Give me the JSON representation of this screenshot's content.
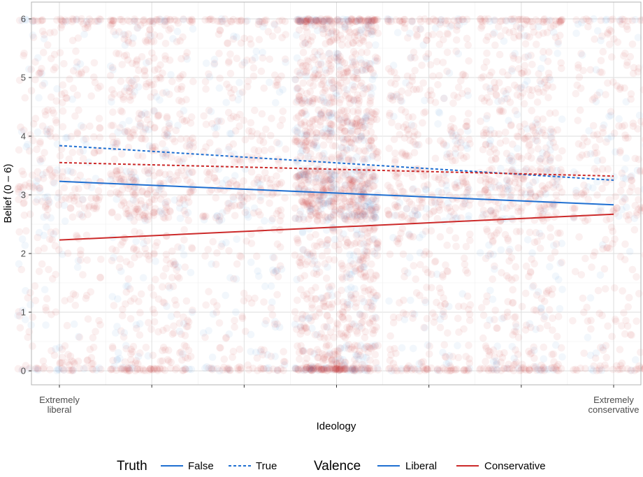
{
  "chart_data": {
    "type": "scatter",
    "title": "",
    "xlabel": "Ideology",
    "ylabel": "Belief (0 – 6)",
    "xlim": [
      1,
      7
    ],
    "ylim": [
      0,
      6
    ],
    "x_tick_labels": [
      {
        "x": 1,
        "lines": [
          "Extremely",
          "liberal"
        ]
      },
      {
        "x": 7,
        "lines": [
          "Extremely",
          "conservative"
        ]
      }
    ],
    "y_ticks": [
      0,
      1,
      2,
      3,
      4,
      5,
      6
    ],
    "grid": true,
    "legend_position": "bottom",
    "colors": {
      "liberal": "#1f6fd1",
      "conservative": "#cc2a2a"
    },
    "legend": {
      "truth_title": "Truth",
      "truth_items": [
        {
          "label": "False",
          "dash": "solid"
        },
        {
          "label": "True",
          "dash": "dashed"
        }
      ],
      "valence_title": "Valence",
      "valence_items": [
        {
          "label": "Liberal",
          "color": "#1f6fd1"
        },
        {
          "label": "Conservative",
          "color": "#cc2a2a"
        }
      ]
    },
    "fit_lines": [
      {
        "truth": "False",
        "valence": "Liberal",
        "x": [
          1,
          7
        ],
        "y": [
          3.23,
          2.83
        ]
      },
      {
        "truth": "True",
        "valence": "Liberal",
        "x": [
          1,
          7
        ],
        "y": [
          3.84,
          3.25
        ]
      },
      {
        "truth": "False",
        "valence": "Conservative",
        "x": [
          1,
          7
        ],
        "y": [
          2.23,
          2.67
        ]
      },
      {
        "truth": "True",
        "valence": "Conservative",
        "x": [
          1,
          7
        ],
        "y": [
          3.55,
          3.32
        ]
      }
    ],
    "scatter": {
      "description_free": true,
      "x_groups": [
        1,
        2,
        3,
        4,
        5,
        6,
        7
      ],
      "x_jitter": 0.45,
      "y_values": [
        0,
        1,
        2,
        3,
        4,
        5,
        6
      ],
      "y_jitter": 0.45,
      "weights_by_x": [
        0.7,
        1.1,
        0.7,
        2.6,
        0.9,
        1.1,
        0.6
      ],
      "weights_by_y": [
        0.9,
        0.6,
        0.6,
        1.6,
        1.0,
        0.8,
        0.8
      ],
      "share_conservative": 0.78
    }
  }
}
